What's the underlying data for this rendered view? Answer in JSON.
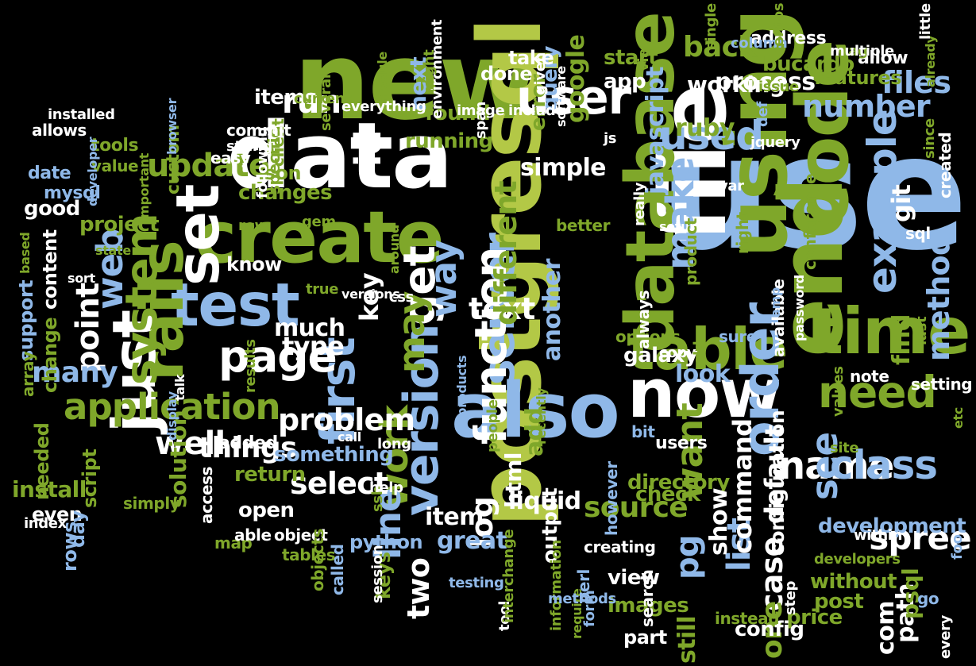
{
  "colors": {
    "background": "#000000",
    "palette": {
      "g": "#7fa72a",
      "w": "#ffffff",
      "b": "#8fb8e8",
      "y": "#b3c846",
      "d": "#4e6e1a"
    }
  },
  "words": [
    {
      "t": "use",
      "c": "b"
    },
    {
      "t": "new",
      "c": "g"
    },
    {
      "t": "data",
      "c": "w"
    },
    {
      "t": "file",
      "c": "w"
    },
    {
      "t": "postgresql",
      "c": "y"
    },
    {
      "t": "using",
      "c": "g"
    },
    {
      "t": "end",
      "c": "g"
    },
    {
      "t": "code",
      "c": "g"
    },
    {
      "t": "create",
      "c": "g"
    },
    {
      "t": "also",
      "c": "b"
    },
    {
      "t": "database",
      "c": "g"
    },
    {
      "t": "now",
      "c": "w"
    },
    {
      "t": "time",
      "c": "g"
    },
    {
      "t": "test",
      "c": "b"
    },
    {
      "t": "rails",
      "c": "g"
    },
    {
      "t": "just",
      "c": "w"
    },
    {
      "t": "set",
      "c": "w"
    },
    {
      "t": "table",
      "c": "g"
    },
    {
      "t": "order",
      "c": "b"
    },
    {
      "t": "user",
      "c": "w"
    },
    {
      "t": "first",
      "c": "b"
    },
    {
      "t": "version",
      "c": "b"
    },
    {
      "t": "page",
      "c": "w"
    },
    {
      "t": "get",
      "c": "w"
    },
    {
      "t": "need",
      "c": "g"
    },
    {
      "t": "server",
      "c": "b"
    },
    {
      "t": "function",
      "c": "w"
    },
    {
      "t": "system",
      "c": "g"
    },
    {
      "t": "example",
      "c": "b"
    },
    {
      "t": "used",
      "c": "b"
    },
    {
      "t": "way",
      "c": "b"
    },
    {
      "t": "name",
      "c": "w"
    },
    {
      "t": "work",
      "c": "g"
    },
    {
      "t": "make",
      "c": "b"
    },
    {
      "t": "see",
      "c": "b"
    },
    {
      "t": "class",
      "c": "b"
    },
    {
      "t": "may",
      "c": "g"
    },
    {
      "t": "application",
      "c": "g"
    },
    {
      "t": "line",
      "c": "b"
    },
    {
      "t": "id",
      "c": "w"
    },
    {
      "t": "update",
      "c": "g"
    },
    {
      "t": "run",
      "c": "w"
    },
    {
      "t": "web",
      "c": "b"
    },
    {
      "t": "point",
      "c": "w"
    },
    {
      "t": "well",
      "c": "w"
    },
    {
      "t": "problem",
      "c": "w"
    },
    {
      "t": "select",
      "c": "w"
    },
    {
      "t": "text",
      "c": "w"
    },
    {
      "t": "different",
      "c": "g"
    },
    {
      "t": "simple",
      "c": "w"
    },
    {
      "t": "files",
      "c": "b"
    },
    {
      "t": "number",
      "c": "b"
    },
    {
      "t": "method",
      "c": "b"
    },
    {
      "t": "want",
      "c": "g"
    },
    {
      "t": "pg",
      "c": "b"
    },
    {
      "t": "spree",
      "c": "w"
    },
    {
      "t": "list",
      "c": "b"
    },
    {
      "t": "case",
      "c": "w"
    },
    {
      "t": "git",
      "c": "w"
    },
    {
      "t": "things",
      "c": "w"
    },
    {
      "t": "many",
      "c": "b"
    },
    {
      "t": "back",
      "c": "g"
    },
    {
      "t": "process",
      "c": "w"
    },
    {
      "t": "working",
      "c": "w"
    },
    {
      "t": "bucardo",
      "c": "g"
    },
    {
      "t": "ruby",
      "c": "g"
    },
    {
      "t": "javascript",
      "c": "b"
    },
    {
      "t": "google",
      "c": "g"
    },
    {
      "t": "key",
      "c": "w"
    },
    {
      "t": "type",
      "c": "w"
    },
    {
      "t": "much",
      "c": "w"
    },
    {
      "t": "log",
      "c": "w"
    },
    {
      "t": "two",
      "c": "w"
    },
    {
      "t": "command",
      "c": "w"
    },
    {
      "t": "source",
      "c": "g"
    },
    {
      "t": "default",
      "c": "w"
    },
    {
      "t": "one",
      "c": "g"
    },
    {
      "t": "add",
      "c": "g"
    },
    {
      "t": "another",
      "c": "b"
    },
    {
      "t": "item",
      "c": "w"
    },
    {
      "t": "html",
      "c": "w"
    },
    {
      "t": "liquid",
      "c": "w"
    },
    {
      "t": "great",
      "c": "b"
    },
    {
      "t": "something",
      "c": "b"
    },
    {
      "t": "return",
      "c": "g"
    },
    {
      "t": "open",
      "c": "w"
    },
    {
      "t": "galaxy",
      "c": "w"
    },
    {
      "t": "look",
      "c": "b"
    },
    {
      "t": "find",
      "c": "g"
    },
    {
      "t": "development",
      "c": "b"
    },
    {
      "t": "directory",
      "c": "g"
    },
    {
      "t": "check",
      "c": "g"
    },
    {
      "t": "still",
      "c": "g"
    },
    {
      "t": "show",
      "c": "w"
    },
    {
      "t": "configuration",
      "c": "w"
    },
    {
      "t": "without",
      "c": "g"
    },
    {
      "t": "post",
      "c": "g"
    },
    {
      "t": "price",
      "c": "g"
    },
    {
      "t": "path",
      "c": "w"
    },
    {
      "t": "com",
      "c": "w"
    },
    {
      "t": "psql",
      "c": "g"
    },
    {
      "t": "install",
      "c": "g"
    },
    {
      "t": "solution",
      "c": "g"
    },
    {
      "t": "running",
      "c": "g"
    },
    {
      "t": "found",
      "c": "g"
    },
    {
      "t": "error",
      "c": "g"
    },
    {
      "t": "query",
      "c": "b"
    },
    {
      "t": "app",
      "c": "w"
    },
    {
      "t": "start",
      "c": "g"
    },
    {
      "t": "take",
      "c": "w"
    },
    {
      "t": "done",
      "c": "w"
    },
    {
      "t": "next",
      "c": "b"
    },
    {
      "t": "items",
      "c": "w"
    },
    {
      "t": "project",
      "c": "g"
    },
    {
      "t": "good",
      "c": "w"
    },
    {
      "t": "changes",
      "c": "g"
    },
    {
      "t": "know",
      "c": "w"
    },
    {
      "t": "content",
      "c": "w"
    },
    {
      "t": "support",
      "c": "b"
    },
    {
      "t": "change",
      "c": "g"
    },
    {
      "t": "script",
      "c": "g"
    },
    {
      "t": "even",
      "c": "w"
    },
    {
      "t": "needed",
      "c": "g"
    },
    {
      "t": "rows",
      "c": "b"
    },
    {
      "t": "day",
      "c": "b"
    },
    {
      "t": "output",
      "c": "w"
    },
    {
      "t": "keys",
      "c": "g"
    },
    {
      "t": "images",
      "c": "g"
    },
    {
      "t": "view",
      "c": "w"
    },
    {
      "t": "part",
      "c": "w"
    },
    {
      "t": "config",
      "c": "w"
    },
    {
      "t": "address",
      "c": "w"
    },
    {
      "t": "features",
      "c": "g"
    },
    {
      "t": "allow",
      "c": "w"
    },
    {
      "t": "users",
      "c": "w"
    },
    {
      "t": "bit",
      "c": "b"
    },
    {
      "t": "added",
      "c": "w"
    },
    {
      "t": "python",
      "c": "b"
    },
    {
      "t": "json",
      "c": "g"
    },
    {
      "t": "tools",
      "c": "g"
    },
    {
      "t": "mysql",
      "c": "b"
    },
    {
      "t": "date",
      "c": "b"
    },
    {
      "t": "value",
      "c": "g"
    },
    {
      "t": "specific",
      "c": "g"
    },
    {
      "t": "client",
      "c": "g"
    },
    {
      "t": "custom",
      "c": "g"
    },
    {
      "t": "easy",
      "c": "w"
    },
    {
      "t": "commit",
      "c": "w"
    },
    {
      "t": "string",
      "c": "w"
    },
    {
      "t": "following",
      "c": "w"
    },
    {
      "t": "gem",
      "c": "g"
    },
    {
      "t": "row",
      "c": "g"
    },
    {
      "t": "map",
      "c": "g"
    },
    {
      "t": "access",
      "c": "w"
    },
    {
      "t": "able",
      "c": "w"
    },
    {
      "t": "object",
      "c": "w"
    },
    {
      "t": "objects",
      "c": "g"
    },
    {
      "t": "tables",
      "c": "g"
    },
    {
      "t": "called",
      "c": "b"
    },
    {
      "t": "session",
      "c": "w"
    },
    {
      "t": "simply",
      "c": "g"
    },
    {
      "t": "index",
      "c": "w"
    },
    {
      "t": "array",
      "c": "g"
    },
    {
      "t": "allows",
      "c": "w"
    },
    {
      "t": "installed",
      "c": "w"
    },
    {
      "t": "current",
      "c": "g"
    },
    {
      "t": "several",
      "c": "g"
    },
    {
      "t": "everything",
      "c": "w"
    },
    {
      "t": "image",
      "c": "w"
    },
    {
      "t": "module",
      "c": "g"
    },
    {
      "t": "include",
      "c": "w"
    },
    {
      "t": "span",
      "c": "w"
    },
    {
      "t": "environment",
      "c": "w"
    },
    {
      "t": "might",
      "c": "g"
    },
    {
      "t": "given",
      "c": "w"
    },
    {
      "t": "software",
      "c": "w"
    },
    {
      "t": "js",
      "c": "w"
    },
    {
      "t": "jquery",
      "c": "w"
    },
    {
      "t": "var",
      "c": "w"
    },
    {
      "t": "really",
      "c": "w"
    },
    {
      "t": "setup",
      "c": "w"
    },
    {
      "t": "better",
      "c": "g"
    },
    {
      "t": "product",
      "c": "g"
    },
    {
      "t": "right",
      "c": "g"
    },
    {
      "t": "sql",
      "c": "w"
    },
    {
      "t": "conference",
      "c": "g"
    },
    {
      "t": "created",
      "c": "w"
    },
    {
      "t": "since",
      "c": "g"
    },
    {
      "t": "tag",
      "c": "g"
    },
    {
      "t": "multiple",
      "c": "w"
    },
    {
      "t": "already",
      "c": "g"
    },
    {
      "t": "little",
      "c": "w"
    },
    {
      "t": "column",
      "c": "b"
    },
    {
      "t": "single",
      "c": "g"
    },
    {
      "t": "centos",
      "c": "g"
    },
    {
      "t": "via",
      "c": "g"
    },
    {
      "t": "issue",
      "c": "g"
    },
    {
      "t": "def",
      "c": "b"
    },
    {
      "t": "options",
      "c": "g"
    },
    {
      "t": "always",
      "c": "w"
    },
    {
      "t": "copy",
      "c": "w"
    },
    {
      "t": "available",
      "c": "w"
    },
    {
      "t": "password",
      "c": "w"
    },
    {
      "t": "amp",
      "c": "b"
    },
    {
      "t": "sure",
      "c": "b"
    },
    {
      "t": "old",
      "c": "g"
    },
    {
      "t": "note",
      "c": "w"
    },
    {
      "t": "setting",
      "c": "w"
    },
    {
      "t": "values",
      "c": "g"
    },
    {
      "t": "last",
      "c": "g"
    },
    {
      "t": "site",
      "c": "g"
    },
    {
      "t": "within",
      "c": "w"
    },
    {
      "t": "etc",
      "c": "g"
    },
    {
      "t": "foo",
      "c": "b"
    },
    {
      "t": "developers",
      "c": "g"
    },
    {
      "t": "go",
      "c": "b"
    },
    {
      "t": "every",
      "c": "w"
    },
    {
      "t": "step",
      "c": "w"
    },
    {
      "t": "instead",
      "c": "g"
    },
    {
      "t": "search",
      "c": "w"
    },
    {
      "t": "form",
      "c": "b"
    },
    {
      "t": "perl",
      "c": "b"
    },
    {
      "t": "require",
      "c": "g"
    },
    {
      "t": "information",
      "c": "g"
    },
    {
      "t": "methods",
      "c": "b"
    },
    {
      "t": "tool",
      "c": "w"
    },
    {
      "t": "interchange",
      "c": "g"
    },
    {
      "t": "testing",
      "c": "b"
    },
    {
      "t": "creating",
      "c": "w"
    },
    {
      "t": "however",
      "c": "b"
    },
    {
      "t": "people",
      "c": "g"
    },
    {
      "t": "recently",
      "c": "g"
    },
    {
      "t": "long",
      "c": "w"
    },
    {
      "t": "ssh",
      "c": "g"
    },
    {
      "t": "products",
      "c": "b"
    },
    {
      "t": "help",
      "c": "w"
    },
    {
      "t": "css",
      "c": "w"
    },
    {
      "t": "versions",
      "c": "w"
    },
    {
      "t": "around",
      "c": "g"
    },
    {
      "t": "true",
      "c": "g"
    },
    {
      "t": "results",
      "c": "g"
    },
    {
      "t": "display",
      "c": "b"
    },
    {
      "t": "talk",
      "c": "w"
    },
    {
      "t": "state",
      "c": "g"
    },
    {
      "t": "sort",
      "c": "w"
    },
    {
      "t": "based",
      "c": "g"
    },
    {
      "t": "important",
      "c": "g"
    },
    {
      "t": "browser",
      "c": "b"
    },
    {
      "t": "developer",
      "c": "b"
    },
    {
      "t": "call",
      "c": "w"
    }
  ]
}
